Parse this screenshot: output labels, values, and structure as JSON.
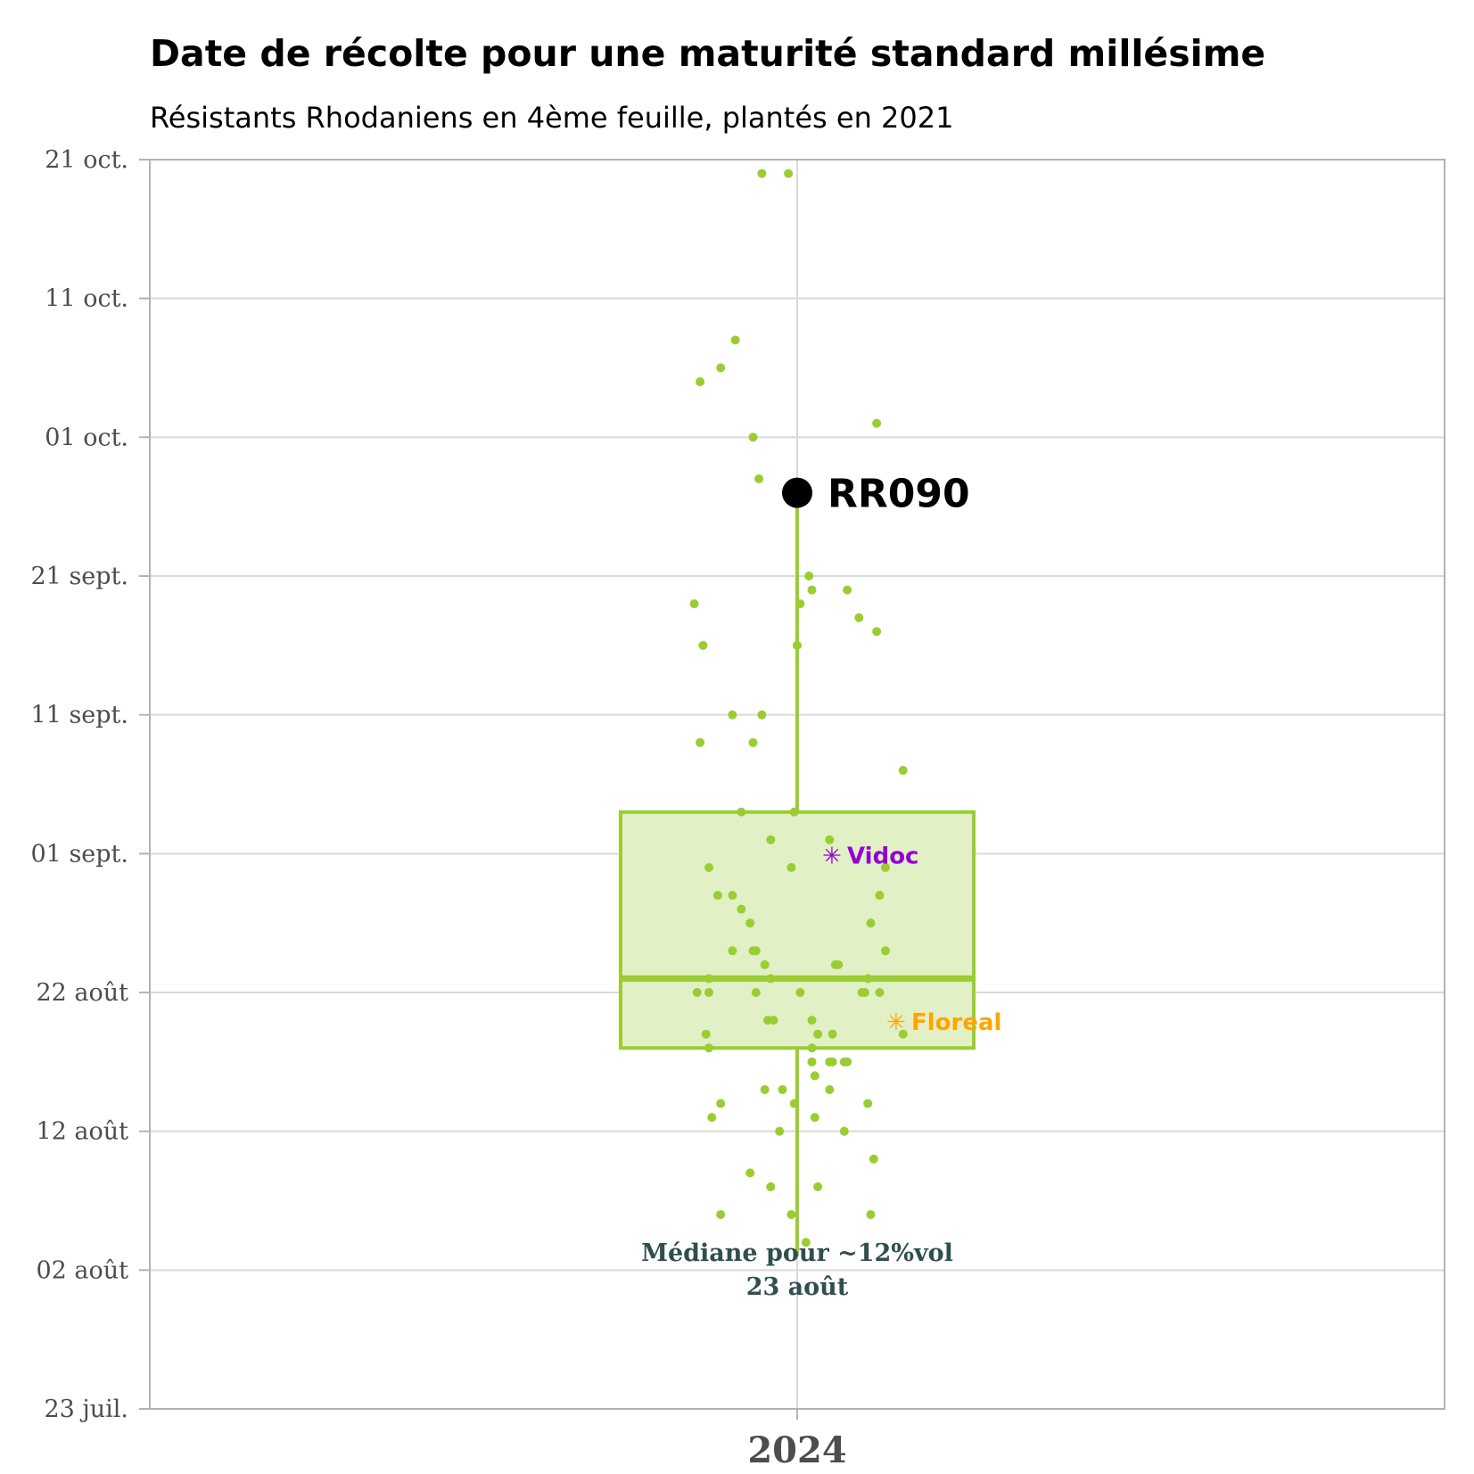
{
  "chart_data": {
    "type": "box",
    "title": "Date de récolte pour une maturité standard millésime",
    "subtitle": "Résistants Rhodaniens en 4ème feuille, plantés en 2021",
    "categories": [
      "2024"
    ],
    "y_axis": {
      "type": "date",
      "ylim": [
        "2024-07-23",
        "2024-10-21"
      ],
      "tick_values": [
        "2024-07-23",
        "2024-08-02",
        "2024-08-12",
        "2024-08-22",
        "2024-09-01",
        "2024-09-11",
        "2024-09-21",
        "2024-10-01",
        "2024-10-11",
        "2024-10-21"
      ],
      "tick_labels": [
        "23 juil.",
        "02 août",
        "12 août",
        "22 août",
        "01 sept.",
        "11 sept.",
        "21 sept.",
        "01 oct.",
        "11 oct.",
        "21 oct."
      ]
    },
    "grid": true,
    "colors": {
      "box": "#9acd32",
      "box_fill": "#e1f0c5",
      "points": "#9acd32",
      "highlight": "#000000",
      "vidoc": "#9400d3",
      "floreal": "#ffa500",
      "median_note": "#2f4f4f",
      "grid": "#d9d9d9",
      "axis": "#b3b3b3"
    },
    "box": {
      "category": "2024",
      "q1": "2024-08-18",
      "median": "2024-08-23",
      "q3": "2024-09-04",
      "whisker_low": "2024-08-03",
      "whisker_high": "2024-09-27"
    },
    "points": [
      {
        "x_offset": -0.12,
        "y": "2024-10-20"
      },
      {
        "x_offset": -0.03,
        "y": "2024-10-20"
      },
      {
        "x_offset": -0.21,
        "y": "2024-10-08"
      },
      {
        "x_offset": -0.26,
        "y": "2024-10-06"
      },
      {
        "x_offset": -0.33,
        "y": "2024-10-05"
      },
      {
        "x_offset": 0.27,
        "y": "2024-10-02"
      },
      {
        "x_offset": -0.15,
        "y": "2024-10-01"
      },
      {
        "x_offset": -0.13,
        "y": "2024-09-28"
      },
      {
        "x_offset": 0.04,
        "y": "2024-09-21"
      },
      {
        "x_offset": 0.05,
        "y": "2024-09-20"
      },
      {
        "x_offset": 0.17,
        "y": "2024-09-20"
      },
      {
        "x_offset": -0.35,
        "y": "2024-09-19"
      },
      {
        "x_offset": 0.01,
        "y": "2024-09-19"
      },
      {
        "x_offset": 0.21,
        "y": "2024-09-18"
      },
      {
        "x_offset": 0.27,
        "y": "2024-09-17"
      },
      {
        "x_offset": -0.32,
        "y": "2024-09-16"
      },
      {
        "x_offset": 0.0,
        "y": "2024-09-16"
      },
      {
        "x_offset": -0.22,
        "y": "2024-09-11"
      },
      {
        "x_offset": -0.12,
        "y": "2024-09-11"
      },
      {
        "x_offset": -0.33,
        "y": "2024-09-09"
      },
      {
        "x_offset": -0.15,
        "y": "2024-09-09"
      },
      {
        "x_offset": 0.36,
        "y": "2024-09-07"
      },
      {
        "x_offset": -0.19,
        "y": "2024-09-04"
      },
      {
        "x_offset": -0.01,
        "y": "2024-09-04"
      },
      {
        "x_offset": -0.09,
        "y": "2024-09-02"
      },
      {
        "x_offset": 0.11,
        "y": "2024-09-02"
      },
      {
        "x_offset": -0.3,
        "y": "2024-08-31"
      },
      {
        "x_offset": -0.02,
        "y": "2024-08-31"
      },
      {
        "x_offset": 0.3,
        "y": "2024-08-31"
      },
      {
        "x_offset": -0.27,
        "y": "2024-08-29"
      },
      {
        "x_offset": -0.22,
        "y": "2024-08-29"
      },
      {
        "x_offset": 0.28,
        "y": "2024-08-29"
      },
      {
        "x_offset": -0.19,
        "y": "2024-08-28"
      },
      {
        "x_offset": -0.16,
        "y": "2024-08-27"
      },
      {
        "x_offset": 0.25,
        "y": "2024-08-27"
      },
      {
        "x_offset": -0.22,
        "y": "2024-08-25"
      },
      {
        "x_offset": -0.15,
        "y": "2024-08-25"
      },
      {
        "x_offset": -0.14,
        "y": "2024-08-25"
      },
      {
        "x_offset": 0.3,
        "y": "2024-08-25"
      },
      {
        "x_offset": -0.11,
        "y": "2024-08-24"
      },
      {
        "x_offset": 0.13,
        "y": "2024-08-24"
      },
      {
        "x_offset": 0.14,
        "y": "2024-08-24"
      },
      {
        "x_offset": -0.3,
        "y": "2024-08-23"
      },
      {
        "x_offset": -0.09,
        "y": "2024-08-23"
      },
      {
        "x_offset": 0.24,
        "y": "2024-08-23"
      },
      {
        "x_offset": -0.34,
        "y": "2024-08-22"
      },
      {
        "x_offset": -0.3,
        "y": "2024-08-22"
      },
      {
        "x_offset": -0.14,
        "y": "2024-08-22"
      },
      {
        "x_offset": 0.01,
        "y": "2024-08-22"
      },
      {
        "x_offset": 0.22,
        "y": "2024-08-22"
      },
      {
        "x_offset": 0.23,
        "y": "2024-08-22"
      },
      {
        "x_offset": 0.28,
        "y": "2024-08-22"
      },
      {
        "x_offset": -0.1,
        "y": "2024-08-20"
      },
      {
        "x_offset": -0.08,
        "y": "2024-08-20"
      },
      {
        "x_offset": 0.05,
        "y": "2024-08-20"
      },
      {
        "x_offset": -0.31,
        "y": "2024-08-19"
      },
      {
        "x_offset": 0.07,
        "y": "2024-08-19"
      },
      {
        "x_offset": 0.12,
        "y": "2024-08-19"
      },
      {
        "x_offset": 0.36,
        "y": "2024-08-19"
      },
      {
        "x_offset": -0.3,
        "y": "2024-08-18"
      },
      {
        "x_offset": 0.05,
        "y": "2024-08-18"
      },
      {
        "x_offset": 0.05,
        "y": "2024-08-17"
      },
      {
        "x_offset": 0.11,
        "y": "2024-08-17"
      },
      {
        "x_offset": 0.12,
        "y": "2024-08-17"
      },
      {
        "x_offset": 0.16,
        "y": "2024-08-17"
      },
      {
        "x_offset": 0.17,
        "y": "2024-08-17"
      },
      {
        "x_offset": 0.06,
        "y": "2024-08-16"
      },
      {
        "x_offset": -0.11,
        "y": "2024-08-15"
      },
      {
        "x_offset": -0.05,
        "y": "2024-08-15"
      },
      {
        "x_offset": 0.11,
        "y": "2024-08-15"
      },
      {
        "x_offset": -0.26,
        "y": "2024-08-14"
      },
      {
        "x_offset": -0.01,
        "y": "2024-08-14"
      },
      {
        "x_offset": 0.24,
        "y": "2024-08-14"
      },
      {
        "x_offset": -0.29,
        "y": "2024-08-13"
      },
      {
        "x_offset": 0.06,
        "y": "2024-08-13"
      },
      {
        "x_offset": -0.06,
        "y": "2024-08-12"
      },
      {
        "x_offset": 0.16,
        "y": "2024-08-12"
      },
      {
        "x_offset": 0.26,
        "y": "2024-08-10"
      },
      {
        "x_offset": -0.16,
        "y": "2024-08-09"
      },
      {
        "x_offset": -0.09,
        "y": "2024-08-08"
      },
      {
        "x_offset": 0.07,
        "y": "2024-08-08"
      },
      {
        "x_offset": -0.26,
        "y": "2024-08-06"
      },
      {
        "x_offset": -0.02,
        "y": "2024-08-06"
      },
      {
        "x_offset": 0.25,
        "y": "2024-08-06"
      },
      {
        "x_offset": 0.03,
        "y": "2024-08-04"
      }
    ],
    "highlight": {
      "label": "RR090",
      "y": "2024-09-27"
    },
    "annotations": [
      {
        "label": "Vidoc",
        "y": "2024-09-01",
        "color": "#9400d3",
        "marker": "✳"
      },
      {
        "label": "Floreal",
        "y": "2024-08-20",
        "color": "#ffa500",
        "marker": "✳"
      }
    ],
    "median_note": {
      "line1": "Médiane pour ~12%vol",
      "line2": "23 août",
      "y": "2024-08-23"
    }
  }
}
